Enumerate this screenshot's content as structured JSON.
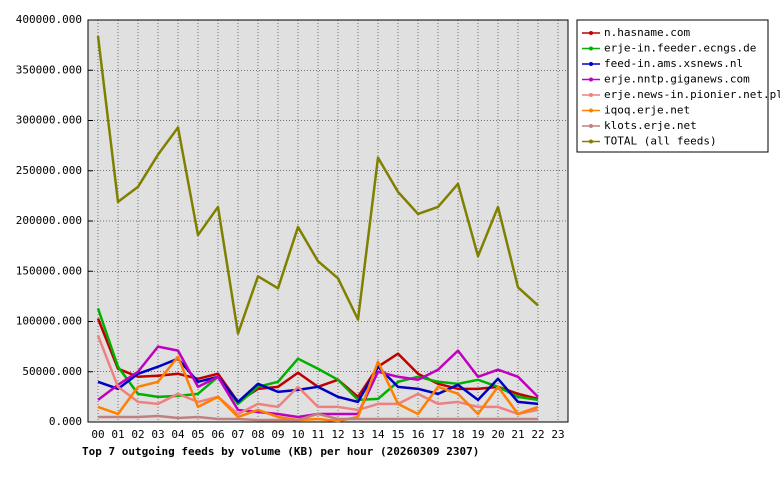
{
  "chart_data": {
    "type": "line",
    "title": "Top 7 outgoing feeds by volume (KB) per hour (20260309 2307)",
    "categories": [
      "00",
      "01",
      "02",
      "03",
      "04",
      "05",
      "06",
      "07",
      "08",
      "09",
      "10",
      "11",
      "12",
      "13",
      "14",
      "15",
      "16",
      "17",
      "18",
      "19",
      "20",
      "21",
      "22",
      "23"
    ],
    "ylim": [
      0,
      400000
    ],
    "yticks": [
      {
        "value": 0,
        "label": "0.000"
      },
      {
        "value": 50000,
        "label": "50000.000"
      },
      {
        "value": 100000,
        "label": "100000.000"
      },
      {
        "value": 150000,
        "label": "150000.000"
      },
      {
        "value": 200000,
        "label": "200000.000"
      },
      {
        "value": 250000,
        "label": "250000.000"
      },
      {
        "value": 300000,
        "label": "300000.000"
      },
      {
        "value": 350000,
        "label": "350000.000"
      },
      {
        "value": 400000,
        "label": "400000.000"
      }
    ],
    "grid": true,
    "legend": "upper-right-outside",
    "series": [
      {
        "name": "n.hasname.com",
        "color": "#c00000",
        "values": [
          103000,
          53000,
          45000,
          46000,
          48000,
          43000,
          48000,
          20000,
          33000,
          35000,
          49000,
          35000,
          42000,
          25000,
          55000,
          68000,
          48000,
          38000,
          33000,
          33000,
          35000,
          28000,
          23000,
          null
        ]
      },
      {
        "name": "erje-in.feeder.ecngs.de",
        "color": "#00b000",
        "values": [
          113000,
          55000,
          28000,
          25000,
          26000,
          28000,
          45000,
          18000,
          35000,
          40000,
          63000,
          53000,
          42000,
          22000,
          23000,
          40000,
          45000,
          40000,
          38000,
          42000,
          35000,
          25000,
          22000,
          null
        ]
      },
      {
        "name": "feed-in.ams.xsnews.nl",
        "color": "#0000c0",
        "values": [
          40000,
          33000,
          48000,
          55000,
          63000,
          40000,
          45000,
          20000,
          38000,
          30000,
          32000,
          35000,
          25000,
          20000,
          55000,
          35000,
          33000,
          28000,
          37000,
          22000,
          43000,
          20000,
          18000,
          null
        ]
      },
      {
        "name": "erje.nntp.giganews.com",
        "color": "#c000c0",
        "values": [
          22000,
          37000,
          50000,
          75000,
          71000,
          35000,
          45000,
          12000,
          10000,
          8000,
          5000,
          8000,
          8000,
          8000,
          50000,
          45000,
          42000,
          52000,
          71000,
          45000,
          52000,
          45000,
          25000,
          null
        ]
      },
      {
        "name": "erje.news-in.pionier.net.pl",
        "color": "#f08080",
        "values": [
          86000,
          35000,
          20000,
          18000,
          28000,
          20000,
          25000,
          8000,
          18000,
          15000,
          35000,
          15000,
          15000,
          12000,
          18000,
          18000,
          28000,
          18000,
          20000,
          15000,
          15000,
          8000,
          12000,
          null
        ]
      },
      {
        "name": "iqoq.erje.net",
        "color": "#ff8000",
        "values": [
          15000,
          8000,
          35000,
          40000,
          65000,
          15000,
          25000,
          5000,
          12000,
          5000,
          2000,
          3000,
          1000,
          5000,
          60000,
          18000,
          8000,
          35000,
          28000,
          8000,
          35000,
          8000,
          15000,
          null
        ]
      },
      {
        "name": "klots.erje.net",
        "color": "#c08080",
        "values": [
          5000,
          5000,
          5000,
          6000,
          4000,
          5000,
          3000,
          3000,
          2000,
          2000,
          2000,
          8000,
          3000,
          3000,
          3000,
          3000,
          3000,
          3000,
          3000,
          3000,
          3000,
          3000,
          3000,
          null
        ]
      },
      {
        "name": "TOTAL (all feeds)",
        "color": "#808000",
        "values": [
          384000,
          219000,
          234000,
          266000,
          293000,
          186000,
          214000,
          88000,
          145000,
          133000,
          194000,
          160000,
          143000,
          102000,
          263000,
          229000,
          207000,
          214000,
          237000,
          165000,
          214000,
          134000,
          116000,
          null
        ]
      }
    ]
  }
}
